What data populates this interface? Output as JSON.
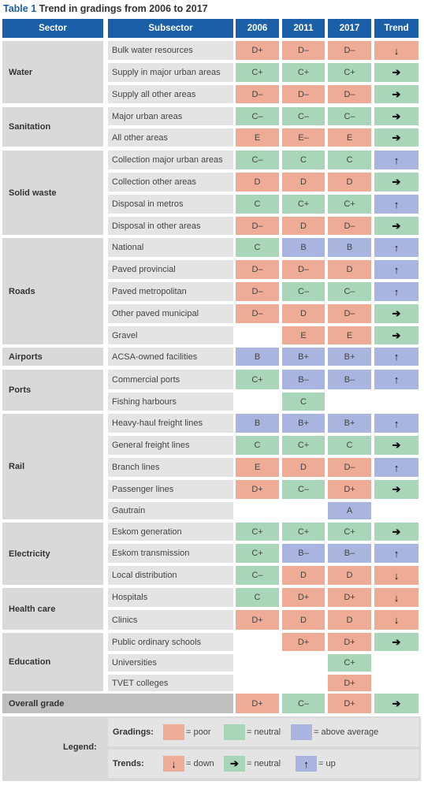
{
  "title": {
    "label": "Table 1",
    "text": "Trend in gradings from 2006 to 2017"
  },
  "headers": {
    "sector": "Sector",
    "subsector": "Subsector",
    "y2006": "2006",
    "y2011": "2011",
    "y2017": "2017",
    "trend": "Trend"
  },
  "colors": {
    "header": "#1a5fa8",
    "poor": "#eeab96",
    "neutral": "#a9d6b9",
    "above_average": "#a9b5de"
  },
  "sectors": [
    {
      "name": "Water",
      "rows": [
        {
          "subsector": "Bulk water resources",
          "g2006": "D+",
          "g2011": "D–",
          "g2017": "D–",
          "trend": "down"
        },
        {
          "subsector": "Supply in major urban areas",
          "g2006": "C+",
          "g2011": "C+",
          "g2017": "C+",
          "trend": "neutral"
        },
        {
          "subsector": "Supply all other areas",
          "g2006": "D–",
          "g2011": "D–",
          "g2017": "D–",
          "trend": "neutral"
        }
      ]
    },
    {
      "name": "Sanitation",
      "rows": [
        {
          "subsector": "Major urban areas",
          "g2006": "C–",
          "g2011": "C–",
          "g2017": "C–",
          "trend": "neutral"
        },
        {
          "subsector": "All other areas",
          "g2006": "E",
          "g2011": "E–",
          "g2017": "E",
          "trend": "neutral"
        }
      ]
    },
    {
      "name": "Solid waste",
      "rows": [
        {
          "subsector": "Collection major urban areas",
          "g2006": "C–",
          "g2011": "C",
          "g2017": "C",
          "trend": "up"
        },
        {
          "subsector": "Collection other areas",
          "g2006": "D",
          "g2011": "D",
          "g2017": "D",
          "trend": "neutral"
        },
        {
          "subsector": "Disposal in metros",
          "g2006": "C",
          "g2011": "C+",
          "g2017": "C+",
          "trend": "up"
        },
        {
          "subsector": "Disposal in other areas",
          "g2006": "D–",
          "g2011": "D",
          "g2017": "D–",
          "trend": "neutral"
        }
      ]
    },
    {
      "name": "Roads",
      "rows": [
        {
          "subsector": "National",
          "g2006": "C",
          "g2011": "B",
          "g2017": "B",
          "trend": "up"
        },
        {
          "subsector": "Paved provincial",
          "g2006": "D–",
          "g2011": "D–",
          "g2017": "D",
          "trend": "up"
        },
        {
          "subsector": "Paved metropolitan",
          "g2006": "D–",
          "g2011": "C–",
          "g2017": "C–",
          "trend": "up"
        },
        {
          "subsector": "Other paved municipal",
          "g2006": "D–",
          "g2011": "D",
          "g2017": "D–",
          "trend": "neutral"
        },
        {
          "subsector": "Gravel",
          "g2006": "",
          "g2011": "E",
          "g2017": "E",
          "trend": "neutral"
        }
      ]
    },
    {
      "name": "Airports",
      "rows": [
        {
          "subsector": "ACSA-owned facilities",
          "g2006": "B",
          "g2011": "B+",
          "g2017": "B+",
          "trend": "up"
        }
      ]
    },
    {
      "name": "Ports",
      "rows": [
        {
          "subsector": "Commercial ports",
          "g2006": "C+",
          "g2011": "B–",
          "g2017": "B–",
          "trend": "up"
        },
        {
          "subsector": "Fishing harbours",
          "g2006": "",
          "g2011": "C",
          "g2017": "",
          "trend": ""
        }
      ]
    },
    {
      "name": "Rail",
      "rows": [
        {
          "subsector": "Heavy-haul freight lines",
          "g2006": "B",
          "g2011": "B+",
          "g2017": "B+",
          "trend": "up"
        },
        {
          "subsector": "General freight lines",
          "g2006": "C",
          "g2011": "C+",
          "g2017": "C",
          "trend": "neutral"
        },
        {
          "subsector": "Branch lines",
          "g2006": "E",
          "g2011": "D",
          "g2017": "D–",
          "trend": "up"
        },
        {
          "subsector": "Passenger lines",
          "g2006": "D+",
          "g2011": "C–",
          "g2017": "D+",
          "trend": "neutral"
        },
        {
          "subsector": "Gautrain",
          "g2006": "",
          "g2011": "",
          "g2017": "A",
          "trend": ""
        }
      ]
    },
    {
      "name": "Electricity",
      "rows": [
        {
          "subsector": "Eskom generation",
          "g2006": "C+",
          "g2011": "C+",
          "g2017": "C+",
          "trend": "neutral"
        },
        {
          "subsector": "Eskom transmission",
          "g2006": "C+",
          "g2011": "B–",
          "g2017": "B–",
          "trend": "up"
        },
        {
          "subsector": "Local distribution",
          "g2006": "C–",
          "g2011": "D",
          "g2017": "D",
          "trend": "down"
        }
      ]
    },
    {
      "name": "Health care",
      "rows": [
        {
          "subsector": "Hospitals",
          "g2006": "C",
          "g2011": "D+",
          "g2017": "D+",
          "trend": "down"
        },
        {
          "subsector": "Clinics",
          "g2006": "D+",
          "g2011": "D",
          "g2017": "D",
          "trend": "down"
        }
      ]
    },
    {
      "name": "Education",
      "rows": [
        {
          "subsector": "Public ordinary schools",
          "g2006": "",
          "g2011": "D+",
          "g2017": "D+",
          "trend": "neutral"
        },
        {
          "subsector": "Universities",
          "g2006": "",
          "g2011": "",
          "g2017": "C+",
          "trend": ""
        },
        {
          "subsector": "TVET colleges",
          "g2006": "",
          "g2011": "",
          "g2017": "D+",
          "trend": ""
        }
      ]
    }
  ],
  "overall": {
    "label": "Overall grade",
    "g2006": "D+",
    "g2011": "C–",
    "g2017": "D+",
    "trend": "neutral"
  },
  "legend": {
    "label": "Legend:",
    "gradings_label": "Gradings:",
    "poor_label": "= poor",
    "neutral_label": "= neutral",
    "above_label": "= above average",
    "trends_label": "Trends:",
    "down_label": "= down",
    "neutral_trend_label": "= neutral",
    "up_label": "= up"
  }
}
